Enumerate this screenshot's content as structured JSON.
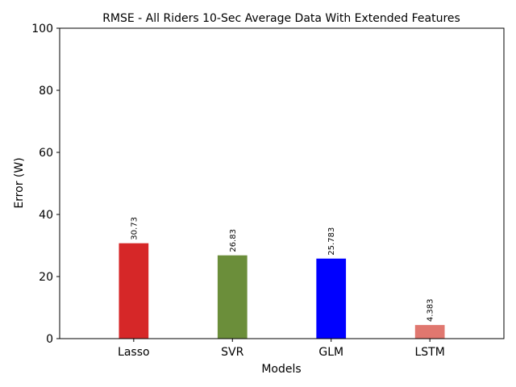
{
  "chart_data": {
    "type": "bar",
    "title": "RMSE - All Riders 10-Sec Average Data With Extended Features",
    "xlabel": "Models",
    "ylabel": "Error (W)",
    "categories": [
      "Lasso",
      "SVR",
      "GLM",
      "LSTM"
    ],
    "values": [
      30.73,
      26.83,
      25.783,
      4.383
    ],
    "value_labels": [
      "30.73",
      "26.83",
      "25.783",
      "4.383"
    ],
    "colors": [
      "#d62728",
      "#6b8e3a",
      "#0000ff",
      "#e0776f"
    ],
    "ylim": [
      0,
      100
    ],
    "yticks": [
      0,
      20,
      40,
      60,
      80,
      100
    ],
    "grid": false,
    "legend": "none"
  }
}
